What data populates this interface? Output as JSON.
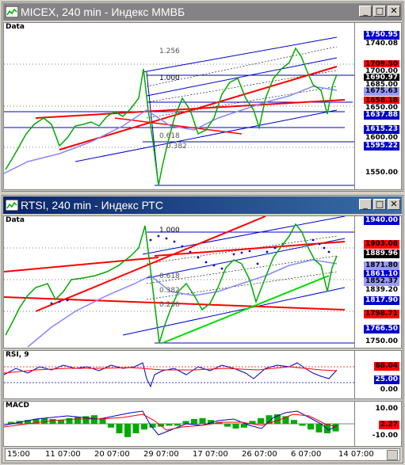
{
  "windows": {
    "micex": {
      "title": "MICEX, 240 min - Индекс ММВБ",
      "pane_label": "Data",
      "fib_labels": [
        "1.256",
        "1.000",
        "0.618",
        "0.382"
      ],
      "price_labels": [
        {
          "text": "1750.95",
          "bg": "#0000cc",
          "fg": "#ffffff"
        },
        {
          "text": "1740.08",
          "bg": "#ffffff",
          "fg": "#000000"
        },
        {
          "text": "1709.50",
          "bg": "#ff0000",
          "fg": "#000000"
        },
        {
          "text": "1700.00",
          "bg": "#ffffff",
          "fg": "#000000"
        },
        {
          "text": "1690.97",
          "bg": "#000000",
          "fg": "#ffffff"
        },
        {
          "text": "1685.00",
          "bg": "#ffffff",
          "fg": "#000000"
        },
        {
          "text": "1675.63",
          "bg": "#9999ff",
          "fg": "#000000"
        },
        {
          "text": "1658.18",
          "bg": "#ff0000",
          "fg": "#000000"
        },
        {
          "text": "1650.00",
          "bg": "#ffffff",
          "fg": "#000000"
        },
        {
          "text": "1637.88",
          "bg": "#0000cc",
          "fg": "#ffffff"
        },
        {
          "text": "1615.23",
          "bg": "#0000cc",
          "fg": "#ffffff"
        },
        {
          "text": "1600.00",
          "bg": "#ffffff",
          "fg": "#000000"
        },
        {
          "text": "1595.22",
          "bg": "#0000cc",
          "fg": "#ffffff"
        },
        {
          "text": "1550.00",
          "bg": "#ffffff",
          "fg": "#000000"
        }
      ]
    },
    "rtsi": {
      "title": "RTSI, 240 min - Индекс РТС",
      "data_label": "Data",
      "fib_labels": [
        "1.000",
        "0.618",
        "0.382",
        "0.236"
      ],
      "price_labels": [
        {
          "text": "1940.00",
          "bg": "#0000cc",
          "fg": "#ffffff"
        },
        {
          "text": "1903.08",
          "bg": "#ff0000",
          "fg": "#000000"
        },
        {
          "text": "1889.96",
          "bg": "#000000",
          "fg": "#ffffff"
        },
        {
          "text": "1871.80",
          "bg": "#9999ff",
          "fg": "#000000"
        },
        {
          "text": "1861.10",
          "bg": "#0000cc",
          "fg": "#ffffff"
        },
        {
          "text": "1852.37",
          "bg": "#9999ff",
          "fg": "#000000"
        },
        {
          "text": "1839.20",
          "bg": "#ffffff",
          "fg": "#000000"
        },
        {
          "text": "1817.90",
          "bg": "#0000cc",
          "fg": "#ffffff"
        },
        {
          "text": "1798.71",
          "bg": "#ff0000",
          "fg": "#000000"
        },
        {
          "text": "1766.50",
          "bg": "#0000cc",
          "fg": "#ffffff"
        },
        {
          "text": "1750.00",
          "bg": "#ffffff",
          "fg": "#000000"
        }
      ],
      "rsi": {
        "label": "RSI, 9",
        "levels": [
          {
            "text": "68.04",
            "bg": "#ff0000",
            "fg": "#000000"
          },
          {
            "text": "25.00",
            "bg": "#0000cc",
            "fg": "#ffffff"
          },
          {
            "text": "0.00",
            "bg": "#ffffff",
            "fg": "#000000"
          }
        ]
      },
      "macd": {
        "label": "MACD",
        "levels": [
          {
            "text": "10.00",
            "bg": "#ffffff",
            "fg": "#000000"
          },
          {
            "text": "2.27",
            "bg": "#ff0000",
            "fg": "#000000"
          },
          {
            "text": "-10.00",
            "bg": "#ffffff",
            "fg": "#000000"
          }
        ]
      }
    }
  },
  "time_axis": [
    "15:00",
    "11 07:00",
    "20 07:00",
    "29 07:00",
    "17 07:00",
    "26 07:00",
    "6 07:00",
    "14 07:00"
  ],
  "colors": {
    "up": "#00aa00",
    "down": "#000000",
    "trend_red": "#ff0000",
    "channel_blue": "#0000cc",
    "ma": "#8888ff",
    "green_line": "#00dd00"
  }
}
